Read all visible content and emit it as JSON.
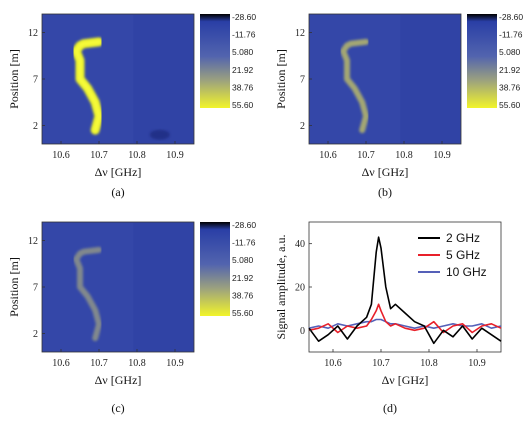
{
  "colors": {
    "background_low": "#2a3fa6",
    "background_mid": "#5a6fae",
    "feature_high": "#e4ec2a",
    "colorbar_top": "#000000",
    "line_2ghz": "#000000",
    "line_5ghz": "#e8202a",
    "line_10ghz": "#5560b8"
  },
  "chart_data": [
    {
      "type": "heatmap",
      "panel_label": "(a)",
      "xlabel": "Δν [GHz]",
      "ylabel": "Position [m]",
      "x_ticks": [
        "10.6",
        "10.7",
        "10.8",
        "10.9"
      ],
      "y_ticks": [
        "2",
        "7",
        "12"
      ],
      "xlim": [
        10.55,
        10.95
      ],
      "ylim": [
        0,
        14
      ],
      "colorbar": {
        "labels": [
          "-28.60",
          "-11.76",
          "5.080",
          "21.92",
          "38.76",
          "55.60"
        ],
        "range": [
          -28.6,
          55.6
        ]
      },
      "feature": {
        "description_points_x": [
          10.69,
          10.7,
          10.69,
          10.67,
          10.65,
          10.65,
          10.65,
          10.64,
          10.65,
          10.66,
          10.7
        ],
        "description_points_y": [
          1.5,
          3,
          4.5,
          6,
          7,
          8,
          9,
          10,
          10.6,
          10.8,
          11
        ],
        "peak_value": 55.6
      },
      "secondary_feature": {
        "x": 10.86,
        "y": 1.0,
        "value": -28.6
      }
    },
    {
      "type": "heatmap",
      "panel_label": "(b)",
      "xlabel": "Δν [GHz]",
      "ylabel": "Position [m]",
      "x_ticks": [
        "10.6",
        "10.7",
        "10.8",
        "10.9"
      ],
      "y_ticks": [
        "2",
        "7",
        "12"
      ],
      "xlim": [
        10.55,
        10.95
      ],
      "ylim": [
        0,
        14
      ],
      "colorbar": {
        "labels": [
          "-28.60",
          "-11.76",
          "5.080",
          "21.92",
          "38.76",
          "55.60"
        ],
        "range": [
          -28.6,
          55.6
        ]
      },
      "feature": {
        "peak_value": 20.0
      }
    },
    {
      "type": "heatmap",
      "panel_label": "(c)",
      "xlabel": "Δν [GHz]",
      "ylabel": "Position [m]",
      "x_ticks": [
        "10.6",
        "10.7",
        "10.8",
        "10.9"
      ],
      "y_ticks": [
        "2",
        "7",
        "12"
      ],
      "xlim": [
        10.55,
        10.95
      ],
      "ylim": [
        0,
        14
      ],
      "colorbar": {
        "labels": [
          "-28.60",
          "-11.76",
          "5.080",
          "21.92",
          "38.76",
          "55.60"
        ],
        "range": [
          -28.6,
          55.6
        ]
      },
      "feature": {
        "peak_value": 10.0
      }
    },
    {
      "type": "line",
      "panel_label": "(d)",
      "xlabel": "Δν [GHz]",
      "ylabel": "Signal amplitude, a.u.",
      "x_ticks": [
        "10.6",
        "10.7",
        "10.8",
        "10.9"
      ],
      "y_ticks": [
        "0",
        "20",
        "40"
      ],
      "xlim": [
        10.55,
        10.95
      ],
      "ylim": [
        -10,
        50
      ],
      "legend_placement": "top-right",
      "x": [
        10.55,
        10.57,
        10.59,
        10.61,
        10.63,
        10.65,
        10.67,
        10.68,
        10.69,
        10.695,
        10.7,
        10.71,
        10.72,
        10.73,
        10.75,
        10.77,
        10.79,
        10.81,
        10.83,
        10.85,
        10.87,
        10.89,
        10.91,
        10.93,
        10.95
      ],
      "series": [
        {
          "name": "2 GHz",
          "values": [
            1,
            -5,
            -2,
            2,
            -4,
            2,
            6,
            12,
            36,
            43,
            38,
            20,
            10,
            12,
            8,
            4,
            2,
            -6,
            0,
            -3,
            2,
            -4,
            1,
            -2,
            -5
          ]
        },
        {
          "name": "5 GHz",
          "values": [
            0,
            1,
            3,
            -1,
            2,
            1,
            2,
            5,
            9,
            12,
            9,
            4,
            2,
            3,
            1,
            0,
            1,
            4,
            -1,
            2,
            3,
            -1,
            2,
            3,
            1
          ]
        },
        {
          "name": "10 GHz",
          "values": [
            1,
            2,
            1,
            3,
            2,
            3,
            4,
            4,
            5,
            5,
            5,
            4,
            3,
            3,
            2,
            1,
            2,
            1,
            2,
            3,
            2,
            2,
            3,
            1,
            2
          ]
        }
      ]
    }
  ]
}
